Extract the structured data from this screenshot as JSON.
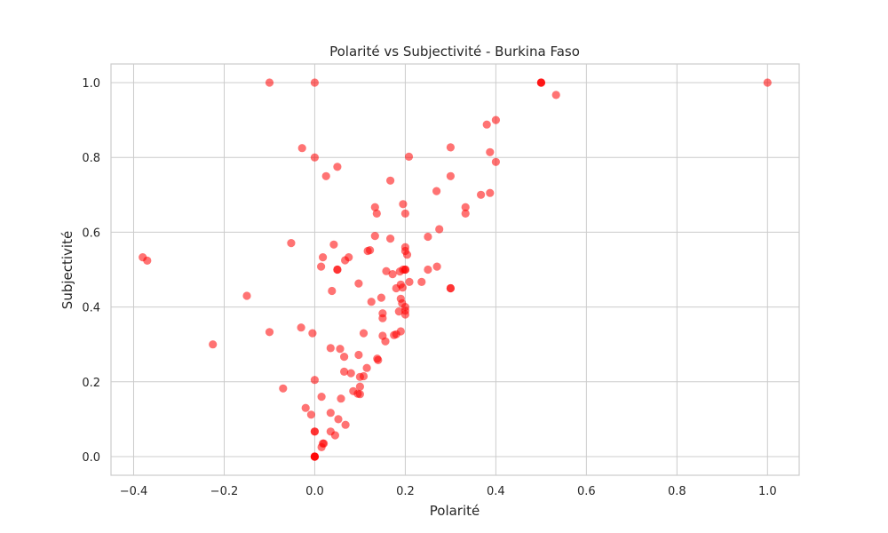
{
  "chart_data": {
    "type": "scatter",
    "title": "Polarité vs Subjectivité - Burkina Faso",
    "xlabel": "Polarité",
    "ylabel": "Subjectivité",
    "xlim": [
      -0.45,
      1.07
    ],
    "ylim": [
      -0.05,
      1.05
    ],
    "xticks": [
      -0.4,
      -0.2,
      0.0,
      0.2,
      0.4,
      0.6,
      0.8,
      1.0
    ],
    "xtick_labels": [
      "−0.4",
      "−0.2",
      "0.0",
      "0.2",
      "0.4",
      "0.6",
      "0.8",
      "1.0"
    ],
    "yticks": [
      0.0,
      0.2,
      0.4,
      0.6,
      0.8,
      1.0
    ],
    "ytick_labels": [
      "0.0",
      "0.2",
      "0.4",
      "0.6",
      "0.8",
      "1.0"
    ],
    "grid": true,
    "colors": {
      "point": "#ff0000",
      "grid": "#cccccc",
      "frame": "#cccccc",
      "text": "#262626"
    },
    "point_opacity": 0.55,
    "points": [
      [
        -0.1,
        1.0
      ],
      [
        0.0,
        1.0
      ],
      [
        0.5,
        1.0
      ],
      [
        0.5,
        1.0
      ],
      [
        0.5,
        1.0
      ],
      [
        0.533,
        0.967
      ],
      [
        1.0,
        1.0
      ],
      [
        0.4,
        0.9
      ],
      [
        0.38,
        0.888
      ],
      [
        0.3,
        0.827
      ],
      [
        0.387,
        0.814
      ],
      [
        0.4,
        0.788
      ],
      [
        -0.028,
        0.825
      ],
      [
        0.0,
        0.8
      ],
      [
        0.208,
        0.802
      ],
      [
        0.05,
        0.775
      ],
      [
        0.025,
        0.75
      ],
      [
        0.3,
        0.75
      ],
      [
        0.167,
        0.738
      ],
      [
        0.269,
        0.71
      ],
      [
        0.367,
        0.7
      ],
      [
        0.387,
        0.705
      ],
      [
        0.133,
        0.667
      ],
      [
        0.195,
        0.675
      ],
      [
        0.333,
        0.667
      ],
      [
        0.137,
        0.65
      ],
      [
        0.2,
        0.65
      ],
      [
        0.333,
        0.65
      ],
      [
        0.275,
        0.608
      ],
      [
        0.25,
        0.588
      ],
      [
        0.133,
        0.59
      ],
      [
        0.167,
        0.583
      ],
      [
        -0.052,
        0.571
      ],
      [
        0.042,
        0.567
      ],
      [
        0.2,
        0.56
      ],
      [
        0.2,
        0.55
      ],
      [
        0.122,
        0.552
      ],
      [
        0.117,
        0.55
      ],
      [
        0.204,
        0.54
      ],
      [
        0.018,
        0.533
      ],
      [
        0.075,
        0.533
      ],
      [
        0.067,
        0.525
      ],
      [
        0.014,
        0.508
      ],
      [
        -0.38,
        0.533
      ],
      [
        -0.37,
        0.524
      ],
      [
        0.05,
        0.5
      ],
      [
        0.05,
        0.5
      ],
      [
        0.158,
        0.496
      ],
      [
        0.2,
        0.5
      ],
      [
        0.195,
        0.5
      ],
      [
        0.2,
        0.5
      ],
      [
        0.25,
        0.5
      ],
      [
        0.27,
        0.508
      ],
      [
        0.188,
        0.495
      ],
      [
        0.172,
        0.488
      ],
      [
        0.209,
        0.467
      ],
      [
        0.236,
        0.467
      ],
      [
        0.097,
        0.463
      ],
      [
        0.19,
        0.46
      ],
      [
        0.18,
        0.45
      ],
      [
        0.194,
        0.452
      ],
      [
        0.3,
        0.45
      ],
      [
        0.3,
        0.45
      ],
      [
        0.038,
        0.443
      ],
      [
        -0.15,
        0.43
      ],
      [
        0.147,
        0.425
      ],
      [
        0.19,
        0.422
      ],
      [
        0.125,
        0.414
      ],
      [
        0.193,
        0.41
      ],
      [
        0.2,
        0.4
      ],
      [
        0.2,
        0.39
      ],
      [
        0.186,
        0.388
      ],
      [
        0.2,
        0.38
      ],
      [
        0.15,
        0.383
      ],
      [
        0.15,
        0.37
      ],
      [
        -0.03,
        0.345
      ],
      [
        -0.1,
        0.333
      ],
      [
        -0.005,
        0.33
      ],
      [
        0.108,
        0.33
      ],
      [
        0.19,
        0.335
      ],
      [
        0.18,
        0.327
      ],
      [
        0.175,
        0.325
      ],
      [
        0.15,
        0.323
      ],
      [
        0.156,
        0.308
      ],
      [
        -0.225,
        0.3
      ],
      [
        0.035,
        0.29
      ],
      [
        0.056,
        0.288
      ],
      [
        0.065,
        0.267
      ],
      [
        0.097,
        0.272
      ],
      [
        0.138,
        0.262
      ],
      [
        0.14,
        0.258
      ],
      [
        0.115,
        0.237
      ],
      [
        0.065,
        0.227
      ],
      [
        0.08,
        0.223
      ],
      [
        0.1,
        0.213
      ],
      [
        0.108,
        0.215
      ],
      [
        0.0,
        0.205
      ],
      [
        0.1,
        0.187
      ],
      [
        -0.07,
        0.182
      ],
      [
        0.085,
        0.175
      ],
      [
        0.095,
        0.168
      ],
      [
        0.1,
        0.167
      ],
      [
        0.015,
        0.16
      ],
      [
        0.058,
        0.155
      ],
      [
        -0.02,
        0.13
      ],
      [
        0.035,
        0.117
      ],
      [
        -0.008,
        0.112
      ],
      [
        0.052,
        0.1
      ],
      [
        0.068,
        0.085
      ],
      [
        0.0,
        0.067
      ],
      [
        0.0,
        0.067
      ],
      [
        0.035,
        0.067
      ],
      [
        0.045,
        0.057
      ],
      [
        0.018,
        0.035
      ],
      [
        0.02,
        0.035
      ],
      [
        0.015,
        0.025
      ],
      [
        0.0,
        0.0
      ],
      [
        0.0,
        0.0
      ],
      [
        0.0,
        0.0
      ],
      [
        0.0,
        0.0
      ]
    ]
  }
}
